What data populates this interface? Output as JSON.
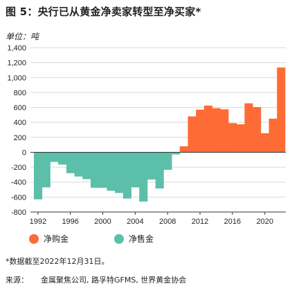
{
  "title": "图 5：央行已从黄金净卖家转型至净买家*",
  "unit_label": "单位：吨",
  "footnote": "*数据截至2022年12月31日。",
  "source": {
    "label": "来源：",
    "text": "金属聚焦公司, 路孚特GFMS, 世界黄金协会"
  },
  "colors": {
    "buy": "#ff6b35",
    "sell": "#5bbfaa",
    "grid": "#d9d9d9",
    "axis": "#333333"
  },
  "legend": [
    {
      "label": "净购金",
      "color": "#ff6b35"
    },
    {
      "label": "净售金",
      "color": "#5bbfaa"
    }
  ],
  "chart_data": {
    "type": "bar",
    "x": [
      1992,
      1993,
      1994,
      1995,
      1996,
      1997,
      1998,
      1999,
      2000,
      2001,
      2002,
      2003,
      2004,
      2005,
      2006,
      2007,
      2008,
      2009,
      2010,
      2011,
      2012,
      2013,
      2014,
      2015,
      2016,
      2017,
      2018,
      2019,
      2020,
      2021,
      2022
    ],
    "values": [
      -630,
      -470,
      -130,
      -165,
      -280,
      -325,
      -360,
      -475,
      -475,
      -515,
      -545,
      -620,
      -470,
      -660,
      -365,
      -485,
      -235,
      -30,
      80,
      480,
      570,
      625,
      590,
      575,
      390,
      375,
      655,
      605,
      255,
      450,
      1135
    ],
    "series": [
      {
        "name": "净购金",
        "color": "#ff6b35"
      },
      {
        "name": "净售金",
        "color": "#5bbfaa"
      }
    ],
    "ylim": [
      -800,
      1400
    ],
    "yticks": [
      -800,
      -600,
      -400,
      -200,
      0,
      200,
      400,
      600,
      800,
      1000,
      1200,
      1400
    ],
    "ytick_labels": [
      "-800",
      "-600",
      "-400",
      "-200",
      "0",
      "200",
      "400",
      "600",
      "800",
      "1,000",
      "1,200",
      "1,400"
    ],
    "xticks": [
      1992,
      1996,
      2000,
      2004,
      2008,
      2012,
      2016,
      2020
    ],
    "xtick_labels": [
      "1992",
      "1996",
      "2000",
      "2004",
      "2008",
      "2012",
      "2016",
      "2020"
    ],
    "grid": true
  }
}
